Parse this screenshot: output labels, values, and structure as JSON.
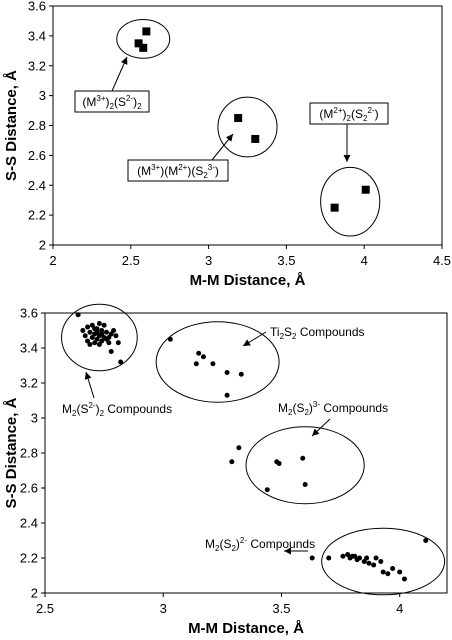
{
  "chart_data": [
    {
      "type": "scatter",
      "xlabel": "M-M Distance, Å",
      "ylabel": "S-S Distance, Å",
      "xlim": [
        2,
        4.5
      ],
      "ylim": [
        2,
        3.6
      ],
      "xticks": [
        "2",
        "2.5",
        "3",
        "3.5",
        "4",
        "4.5"
      ],
      "yticks": [
        "2",
        "2.2",
        "2.4",
        "2.6",
        "2.8",
        "3",
        "3.2",
        "3.4",
        "3.6"
      ],
      "marker": "square",
      "series": [
        {
          "points": [
            [
              2.6,
              3.43
            ],
            [
              2.55,
              3.35
            ],
            [
              2.58,
              3.32
            ]
          ]
        },
        {
          "points": [
            [
              3.19,
              2.85
            ],
            [
              3.3,
              2.71
            ]
          ]
        },
        {
          "points": [
            [
              3.81,
              2.25
            ],
            [
              4.01,
              2.37
            ]
          ]
        }
      ],
      "clusters": [
        {
          "cx": 2.58,
          "cy": 3.38,
          "rx": 0.17,
          "ry": 0.13
        },
        {
          "cx": 3.25,
          "cy": 2.79,
          "rx": 0.19,
          "ry": 0.2
        },
        {
          "cx": 3.91,
          "cy": 2.29,
          "rx": 0.19,
          "ry": 0.23
        }
      ],
      "annotations": [
        {
          "lines": [
            [
              "(M",
              "3+",
              "sup"
            ],
            [
              ")",
              "2",
              "sub"
            ],
            [
              "(S",
              "2-",
              "sup"
            ],
            [
              ")",
              "2",
              "sub"
            ]
          ],
          "box": true
        },
        {
          "lines": [
            [
              "(M",
              "3+",
              "sup"
            ],
            [
              ")(M",
              "2+",
              "sup"
            ],
            [
              ")(S",
              "2",
              "sub"
            ],
            [
              "",
              "3-",
              "sup"
            ],
            [
              ")",
              "",
              ""
            ]
          ],
          "box": true
        },
        {
          "lines": [
            [
              "(M",
              "2+",
              "sup"
            ],
            [
              ")",
              "2",
              "sub"
            ],
            [
              "(S",
              "2",
              "sub"
            ],
            [
              "",
              "2-",
              "sup"
            ],
            [
              ")",
              "",
              ""
            ]
          ],
          "box": true
        }
      ]
    },
    {
      "type": "scatter",
      "xlabel": "M-M Distance, Å",
      "ylabel": "S-S Distance, Å",
      "xlim": [
        2.5,
        4.2
      ],
      "ylim": [
        2,
        3.6
      ],
      "xticks": [
        "2.5",
        "3",
        "3.5",
        "4"
      ],
      "yticks": [
        "2",
        "2.2",
        "2.4",
        "2.6",
        "2.8",
        "3",
        "3.2",
        "3.4",
        "3.6"
      ],
      "marker": "circle",
      "series": [
        {
          "points": [
            [
              2.64,
              3.59
            ],
            [
              2.7,
              3.53
            ],
            [
              2.73,
              3.54
            ],
            [
              2.75,
              3.53
            ],
            [
              2.68,
              3.52
            ],
            [
              2.72,
              3.51
            ],
            [
              2.74,
              3.5
            ],
            [
              2.76,
              3.49
            ],
            [
              2.69,
              3.49
            ],
            [
              2.71,
              3.48
            ],
            [
              2.73,
              3.47
            ],
            [
              2.78,
              3.48
            ],
            [
              2.67,
              3.47
            ],
            [
              2.7,
              3.46
            ],
            [
              2.75,
              3.46
            ],
            [
              2.72,
              3.45
            ],
            [
              2.68,
              3.44
            ],
            [
              2.74,
              3.44
            ],
            [
              2.71,
              3.43
            ],
            [
              2.77,
              3.43
            ],
            [
              2.69,
              3.42
            ],
            [
              2.73,
              3.42
            ],
            [
              2.76,
              3.45
            ],
            [
              2.8,
              3.47
            ],
            [
              2.66,
              3.5
            ],
            [
              2.71,
              3.51
            ],
            [
              2.74,
              3.48
            ],
            [
              2.72,
              3.49
            ],
            [
              2.79,
              3.5
            ],
            [
              2.81,
              3.43
            ],
            [
              2.78,
              3.38
            ],
            [
              2.82,
              3.32
            ],
            [
              2.77,
              3.46
            ]
          ]
        },
        {
          "points": [
            [
              3.03,
              3.45
            ],
            [
              3.15,
              3.37
            ],
            [
              3.17,
              3.35
            ],
            [
              3.14,
              3.31
            ],
            [
              3.21,
              3.31
            ],
            [
              3.27,
              3.26
            ],
            [
              3.33,
              3.25
            ],
            [
              3.27,
              3.13
            ]
          ]
        },
        {
          "points": [
            [
              3.29,
              2.75
            ],
            [
              3.32,
              2.83
            ],
            [
              3.48,
              2.75
            ],
            [
              3.49,
              2.74
            ],
            [
              3.59,
              2.77
            ],
            [
              3.44,
              2.59
            ],
            [
              3.6,
              2.62
            ]
          ]
        },
        {
          "points": [
            [
              3.63,
              2.2
            ],
            [
              3.7,
              2.2
            ],
            [
              3.76,
              2.21
            ],
            [
              3.78,
              2.22
            ],
            [
              3.79,
              2.2
            ],
            [
              3.8,
              2.21
            ],
            [
              3.82,
              2.19
            ],
            [
              3.81,
              2.21
            ],
            [
              3.83,
              2.2
            ],
            [
              3.85,
              2.18
            ],
            [
              3.86,
              2.2
            ],
            [
              3.87,
              2.17
            ],
            [
              3.89,
              2.16
            ],
            [
              3.9,
              2.2
            ],
            [
              3.92,
              2.18
            ],
            [
              3.93,
              2.12
            ],
            [
              3.95,
              2.11
            ],
            [
              3.97,
              2.14
            ],
            [
              4.0,
              2.12
            ],
            [
              4.02,
              2.08
            ],
            [
              4.11,
              2.3
            ]
          ]
        }
      ],
      "clusters": [
        {
          "cx": 2.73,
          "cy": 3.46,
          "rx": 0.16,
          "ry": 0.19
        },
        {
          "cx": 3.23,
          "cy": 3.32,
          "rx": 0.26,
          "ry": 0.23
        },
        {
          "cx": 3.6,
          "cy": 2.73,
          "rx": 0.25,
          "ry": 0.22
        },
        {
          "cx": 3.93,
          "cy": 2.18,
          "rx": 0.26,
          "ry": 0.19
        }
      ],
      "annotations": [
        {
          "lines": [
            [
              "M",
              "2",
              "sub"
            ],
            [
              "(S",
              "2-",
              "sup"
            ],
            [
              ")",
              "2",
              "sub"
            ],
            [
              " Compounds",
              "",
              ""
            ]
          ],
          "box": false
        },
        {
          "lines": [
            [
              "Ti",
              "2",
              "sub"
            ],
            [
              "S",
              "2",
              "sub"
            ],
            [
              " Compounds",
              "",
              ""
            ]
          ],
          "box": false
        },
        {
          "lines": [
            [
              "M",
              "2",
              "sub"
            ],
            [
              "(S",
              "2",
              "sub"
            ],
            [
              ")",
              "3-",
              "sup"
            ],
            [
              " Compounds",
              "",
              ""
            ]
          ],
          "box": false
        },
        {
          "lines": [
            [
              "M",
              "2",
              "sub"
            ],
            [
              "(S",
              "2",
              "sub"
            ],
            [
              ")",
              "2-",
              "sup"
            ],
            [
              " Compounds",
              "",
              ""
            ]
          ],
          "box": false
        }
      ]
    }
  ]
}
